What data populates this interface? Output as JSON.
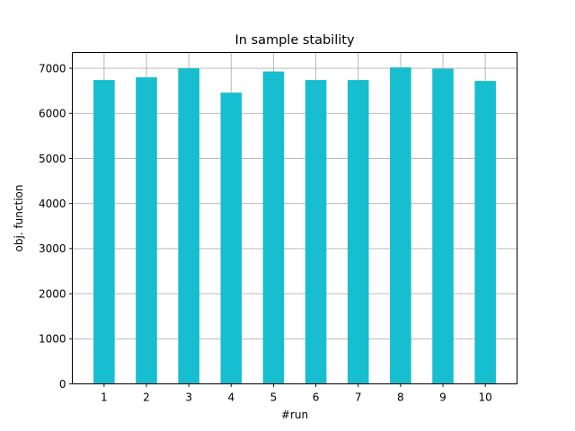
{
  "chart_data": {
    "type": "bar",
    "title": "In sample stability",
    "xlabel": "#run",
    "ylabel": "obj. function",
    "categories": [
      "1",
      "2",
      "3",
      "4",
      "5",
      "6",
      "7",
      "8",
      "9",
      "10"
    ],
    "values": [
      6740,
      6800,
      7000,
      6460,
      6930,
      6740,
      6740,
      7020,
      6990,
      6720
    ],
    "ylim": [
      0,
      7350
    ],
    "yticks": [
      0,
      1000,
      2000,
      3000,
      4000,
      5000,
      6000,
      7000
    ],
    "grid": true,
    "bar_color": "#17becf"
  }
}
